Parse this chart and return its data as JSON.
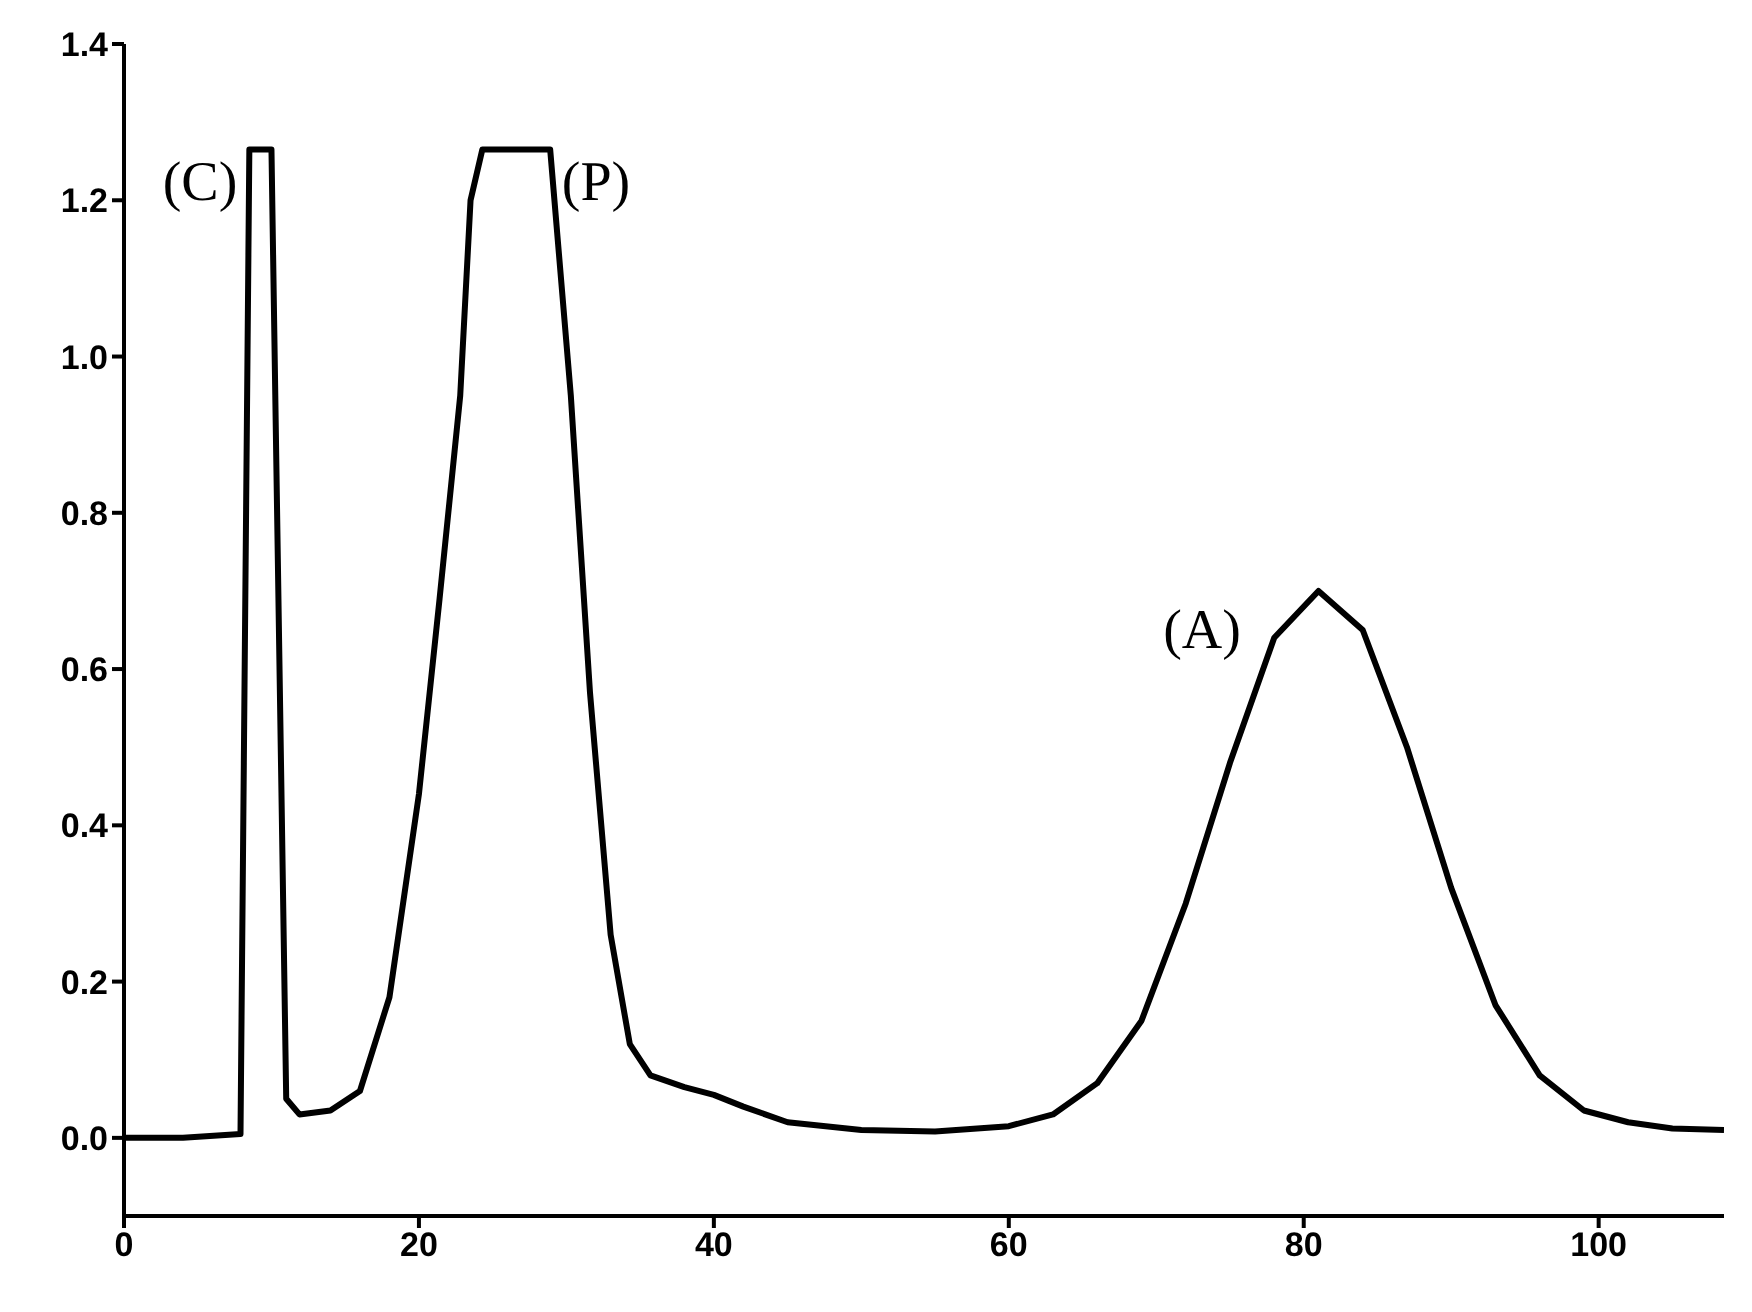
{
  "chart_data": {
    "type": "line",
    "x": [
      0,
      4,
      7.9,
      8.5,
      10.0,
      11.0,
      11.9,
      14,
      16,
      18,
      20,
      21.4,
      22.8,
      23.5,
      24.3,
      28.9,
      30.3,
      31.6,
      33,
      34.3,
      35.7,
      38,
      40,
      42,
      45,
      50,
      55,
      60,
      63,
      66,
      69,
      72,
      75,
      78,
      81,
      84,
      87,
      90,
      93,
      96,
      99,
      102,
      105,
      108.5
    ],
    "series": [
      {
        "color": "#000000",
        "values": [
          0,
          0,
          0.005,
          1.265,
          1.265,
          0.05,
          0.03,
          0.035,
          0.06,
          0.18,
          0.44,
          0.69,
          0.95,
          1.2,
          1.265,
          1.265,
          0.95,
          0.57,
          0.26,
          0.12,
          0.08,
          0.065,
          0.055,
          0.04,
          0.02,
          0.01,
          0.008,
          0.015,
          0.03,
          0.07,
          0.15,
          0.3,
          0.48,
          0.64,
          0.7,
          0.65,
          0.5,
          0.32,
          0.17,
          0.08,
          0.035,
          0.02,
          0.012,
          0.01
        ]
      }
    ],
    "xlim": [
      0,
      108.5
    ],
    "xticks": [
      0,
      20,
      40,
      60,
      80,
      100
    ],
    "ylim": [
      -0.1,
      1.4
    ],
    "yticks": [
      {
        "value": 0,
        "label": "0.0"
      },
      0.2,
      0.4,
      0.6,
      0.8,
      {
        "value": 1,
        "label": "1.0"
      },
      1.2,
      1.4
    ],
    "annotations": [
      "(C)",
      "(P)",
      "(A)"
    ],
    "marker": "none",
    "line_style": "solid",
    "grid": false,
    "legend": false
  }
}
